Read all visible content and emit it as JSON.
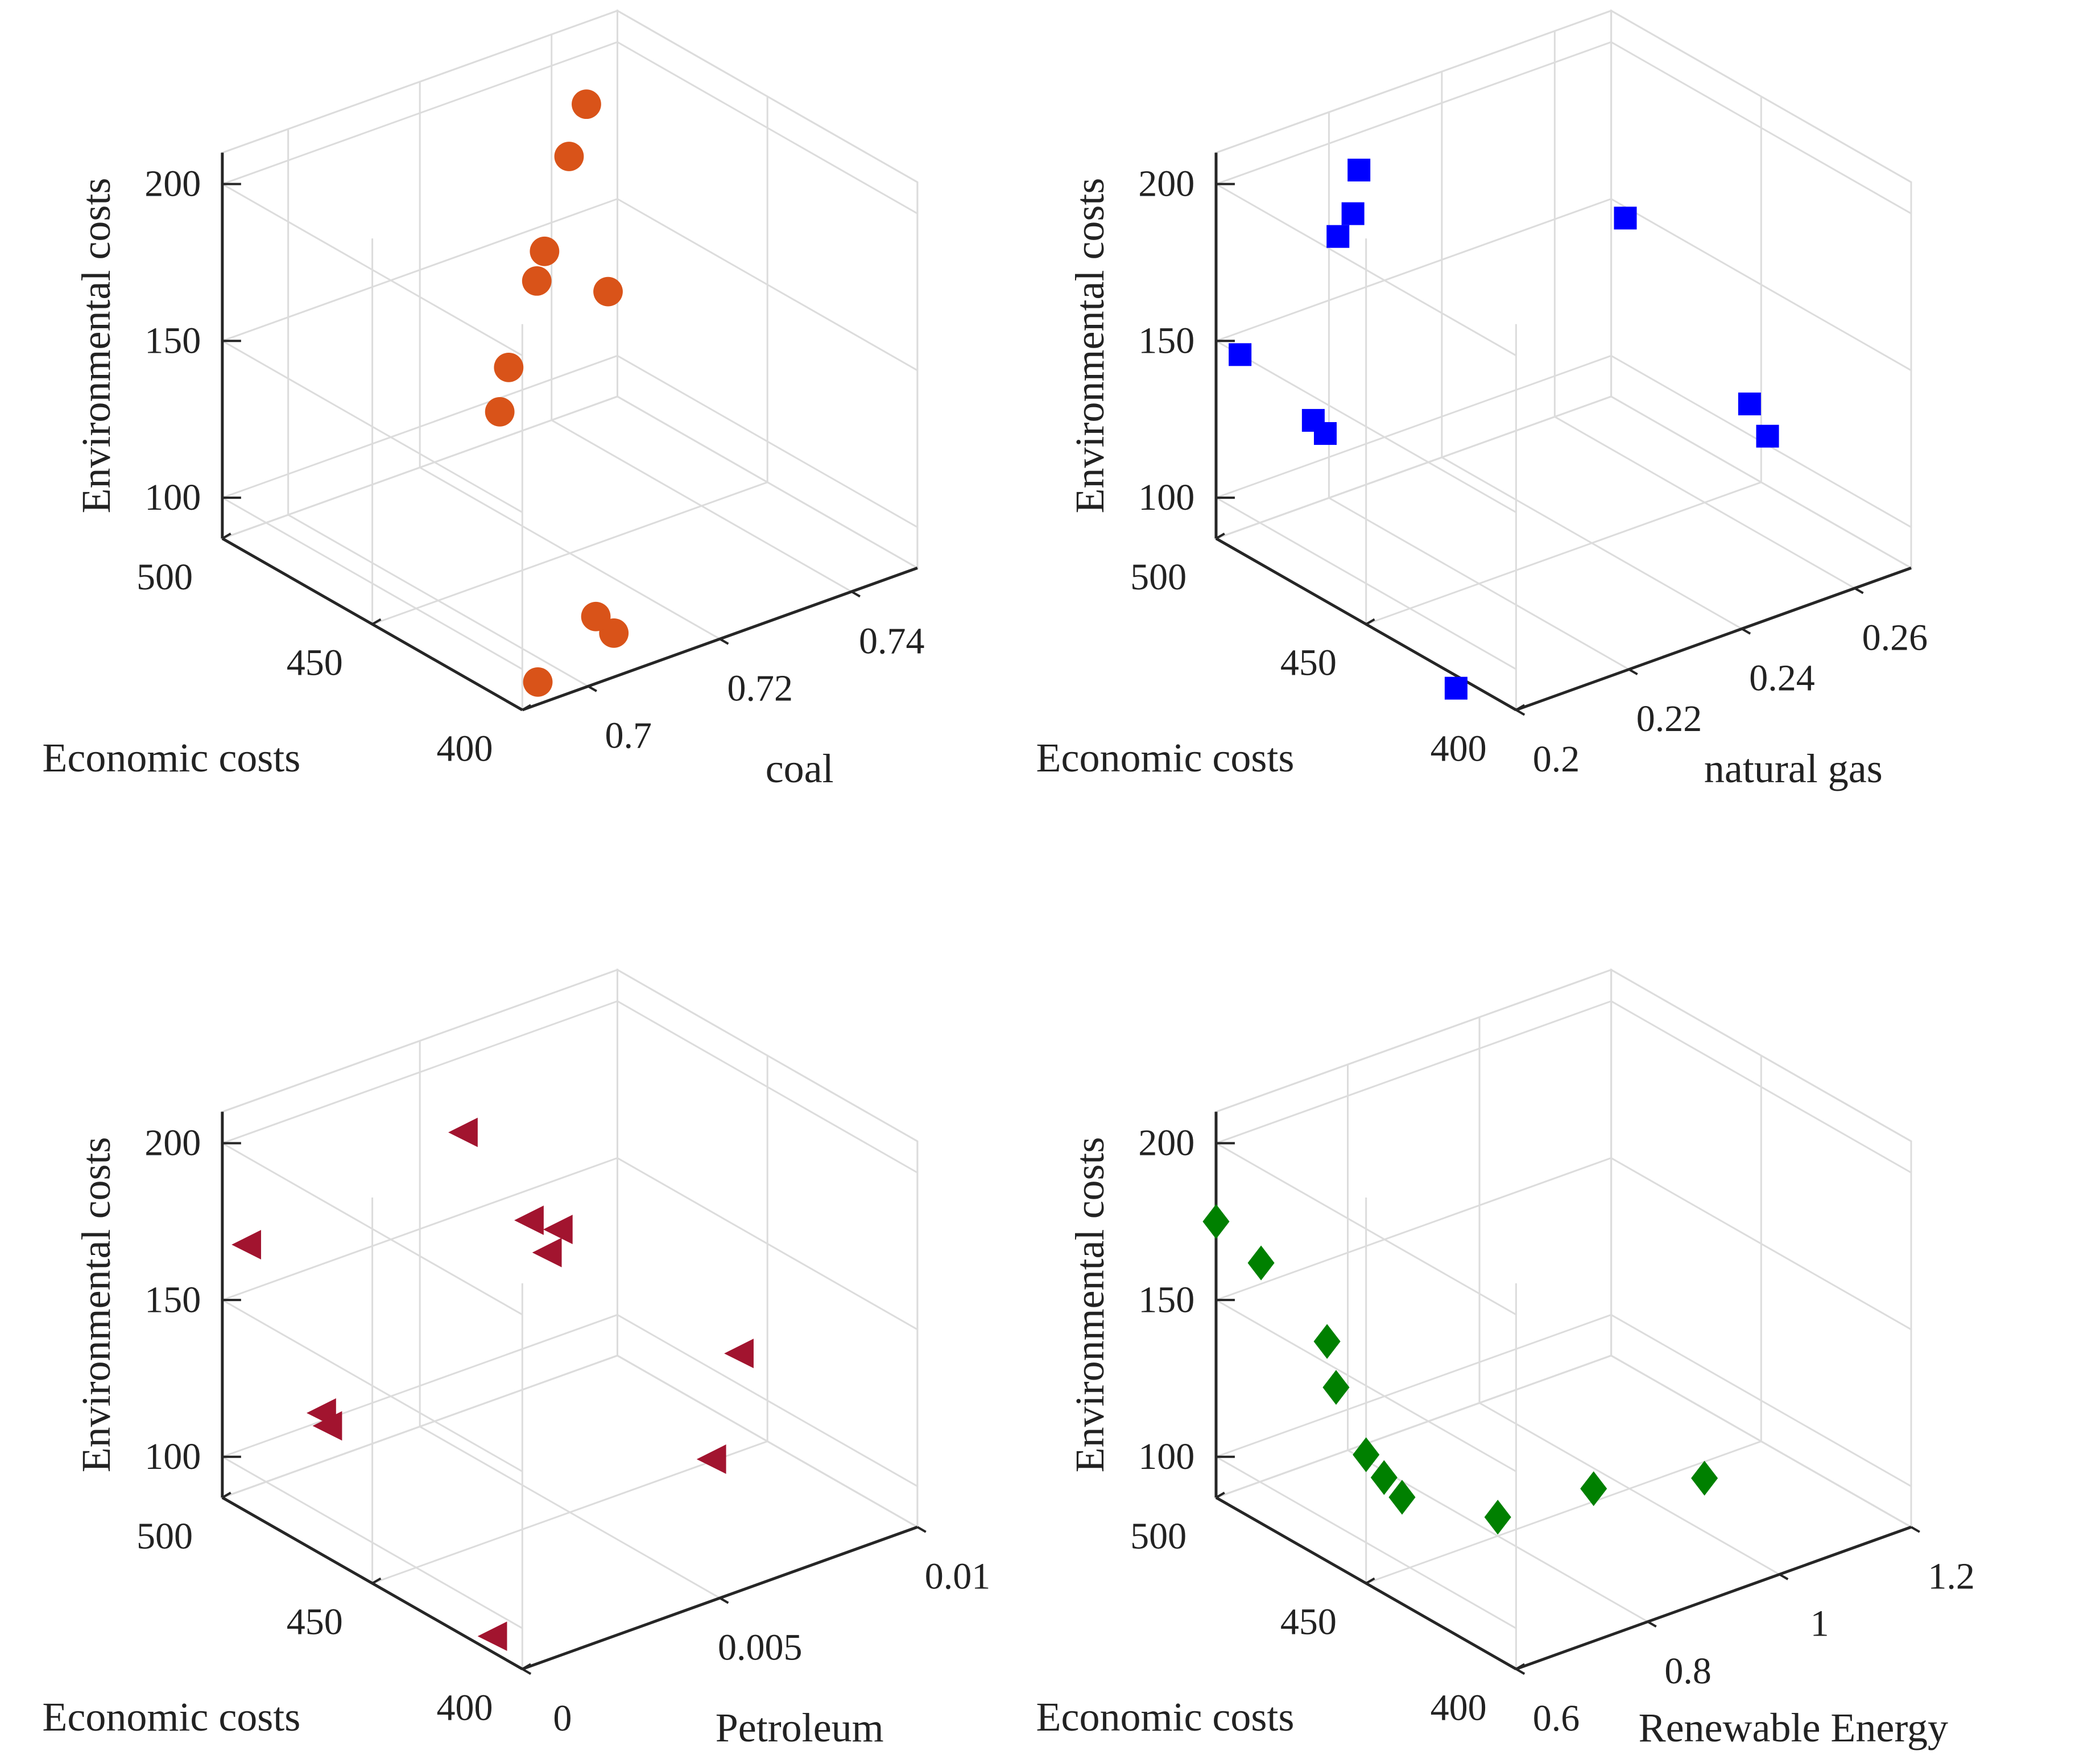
{
  "chart_data": [
    {
      "type": "scatter3d",
      "marker": "circle",
      "color": "#D95319",
      "xlabel": "coal",
      "ylabel": "Economic costs",
      "zlabel": "Environmental costs",
      "xlim": [
        0.69,
        0.75
      ],
      "ylim": [
        400,
        500
      ],
      "zlim": [
        87,
        210
      ],
      "xticks": [
        "0.7",
        "0.72",
        "0.74"
      ],
      "xtick_values": [
        0.7,
        0.72,
        0.74
      ],
      "yticks": [
        "400",
        "450",
        "500"
      ],
      "ytick_values": [
        400,
        450,
        500
      ],
      "zticks": [
        "100",
        "150",
        "200"
      ],
      "ztick_values": [
        100,
        150,
        200
      ],
      "points": [
        {
          "x": 0.738,
          "y": 484,
          "z": 198
        },
        {
          "x": 0.734,
          "y": 481,
          "z": 186
        },
        {
          "x": 0.728,
          "y": 476,
          "z": 163
        },
        {
          "x": 0.725,
          "y": 472,
          "z": 158
        },
        {
          "x": 0.734,
          "y": 468,
          "z": 150
        },
        {
          "x": 0.718,
          "y": 466,
          "z": 139
        },
        {
          "x": 0.713,
          "y": 458,
          "z": 133
        },
        {
          "x": 0.708,
          "y": 409,
          "z": 93
        },
        {
          "x": 0.708,
          "y": 415,
          "z": 95
        },
        {
          "x": 0.696,
          "y": 408,
          "z": 87
        }
      ]
    },
    {
      "type": "scatter3d",
      "marker": "square",
      "color": "#0000FF",
      "xlabel": "natural gas",
      "ylabel": "Economic costs",
      "zlabel": "Environmental costs",
      "xlim": [
        0.2,
        0.27
      ],
      "ylim": [
        400,
        500
      ],
      "zlim": [
        87,
        210
      ],
      "xticks": [
        "0.2",
        "0.22",
        "0.24",
        "0.26"
      ],
      "xtick_values": [
        0.2,
        0.22,
        0.24,
        0.26
      ],
      "yticks": [
        "400",
        "450",
        "500"
      ],
      "ytick_values": [
        400,
        450,
        500
      ],
      "zticks": [
        "100",
        "150",
        "200"
      ],
      "ztick_values": [
        100,
        150,
        200
      ],
      "points": [
        {
          "x": 0.22,
          "y": 490,
          "z": 197
        },
        {
          "x": 0.22,
          "y": 492,
          "z": 182
        },
        {
          "x": 0.22,
          "y": 497,
          "z": 172
        },
        {
          "x": 0.247,
          "y": 452,
          "z": 185
        },
        {
          "x": 0.2,
          "y": 492,
          "z": 150
        },
        {
          "x": 0.205,
          "y": 477,
          "z": 134
        },
        {
          "x": 0.205,
          "y": 473,
          "z": 132
        },
        {
          "x": 0.252,
          "y": 420,
          "z": 140
        },
        {
          "x": 0.252,
          "y": 414,
          "z": 133
        },
        {
          "x": 0.2,
          "y": 420,
          "z": 83
        }
      ]
    },
    {
      "type": "scatter3d",
      "marker": "triangle-left",
      "color": "#A2142F",
      "xlabel": "Petroleum",
      "ylabel": "Economic costs",
      "zlabel": "Environmental costs",
      "xlim": [
        0,
        0.01
      ],
      "ylim": [
        400,
        500
      ],
      "zlim": [
        87,
        210
      ],
      "xticks": [
        "0",
        "0.005",
        "0.01"
      ],
      "xtick_values": [
        0,
        0.005,
        0.01
      ],
      "yticks": [
        "400",
        "450",
        "500"
      ],
      "ytick_values": [
        400,
        450,
        500
      ],
      "zticks": [
        "100",
        "150",
        "200"
      ],
      "ztick_values": [
        100,
        150,
        200
      ],
      "points": [
        {
          "x": 0.0048,
          "y": 483,
          "z": 191
        },
        {
          "x": 0.0048,
          "y": 461,
          "z": 175
        },
        {
          "x": 0.005,
          "y": 454,
          "z": 175
        },
        {
          "x": 0.0048,
          "y": 455,
          "z": 168
        },
        {
          "x": 0.0,
          "y": 492,
          "z": 172
        },
        {
          "x": 0.0,
          "y": 467,
          "z": 132
        },
        {
          "x": 0.0,
          "y": 465,
          "z": 129
        },
        {
          "x": 0.007,
          "y": 420,
          "z": 145
        },
        {
          "x": 0.006,
          "y": 416,
          "z": 118
        },
        {
          "x": 0.0,
          "y": 410,
          "z": 92
        }
      ]
    },
    {
      "type": "scatter3d",
      "marker": "diamond",
      "color": "#008000",
      "xlabel": "Renewable Energy",
      "ylabel": "Economic costs",
      "zlabel": "Environmental costs",
      "xlim": [
        0.6,
        1.2
      ],
      "ylim": [
        400,
        500
      ],
      "zlim": [
        87,
        210
      ],
      "xticks": [
        "0.6",
        "0.8",
        "1",
        "1.2"
      ],
      "xtick_values": [
        0.6,
        0.8,
        1.0,
        1.2
      ],
      "yticks": [
        "400",
        "450",
        "500"
      ],
      "ytick_values": [
        400,
        450,
        500
      ],
      "zticks": [
        "100",
        "150",
        "200"
      ],
      "ztick_values": [
        100,
        150,
        200
      ],
      "points": [
        {
          "x": 0.6,
          "y": 500,
          "z": 175
        },
        {
          "x": 0.6,
          "y": 485,
          "z": 170
        },
        {
          "x": 0.6,
          "y": 463,
          "z": 157
        },
        {
          "x": 0.6,
          "y": 460,
          "z": 144
        },
        {
          "x": 0.6,
          "y": 450,
          "z": 128
        },
        {
          "x": 0.6,
          "y": 444,
          "z": 124
        },
        {
          "x": 0.6,
          "y": 438,
          "z": 121
        },
        {
          "x": 0.8,
          "y": 450,
          "z": 93
        },
        {
          "x": 0.9,
          "y": 440,
          "z": 100
        },
        {
          "x": 1.0,
          "y": 425,
          "z": 104
        }
      ]
    }
  ]
}
